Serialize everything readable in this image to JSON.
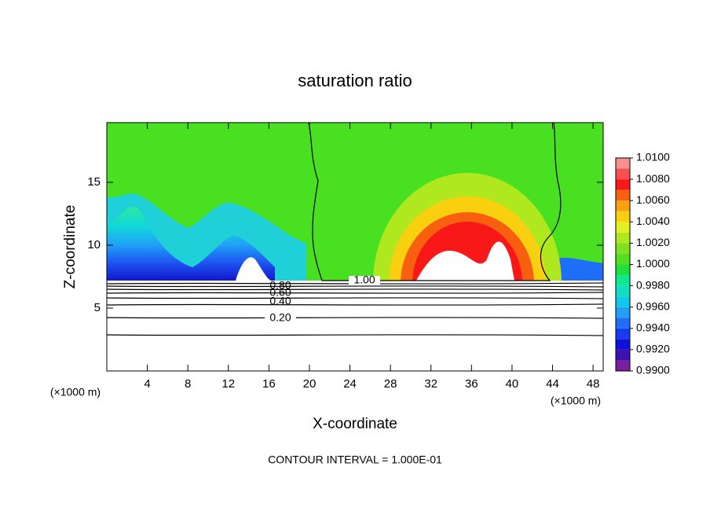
{
  "chart_data": {
    "type": "contour",
    "title": "saturation ratio",
    "x_label": "X-coordinate",
    "y_label": "Z-coordinate",
    "x_unit": "(×1000 m)",
    "y_unit": "(×1000 m)",
    "footer": "CONTOUR INTERVAL = 1.000E-01",
    "xlim": [
      0,
      49
    ],
    "xticks": [
      4,
      8,
      12,
      16,
      20,
      24,
      28,
      32,
      36,
      40,
      44,
      48
    ],
    "ylim": [
      0,
      19.75
    ],
    "yticks": [
      5,
      10,
      15
    ],
    "contour_labels": [
      "1.00",
      "0.80",
      "0.60",
      "0.40",
      "0.20"
    ],
    "colorbar": {
      "levels": [
        0.99,
        0.991,
        0.992,
        0.993,
        0.994,
        0.995,
        0.996,
        0.997,
        0.998,
        0.999,
        1.0,
        1.001,
        1.002,
        1.003,
        1.004,
        1.005,
        1.006,
        1.007,
        1.008,
        1.009,
        1.01
      ],
      "colors": [
        "#7a1fa0",
        "#3c12b0",
        "#1010d8",
        "#1a3af0",
        "#1e6ef8",
        "#20a0f8",
        "#10c8e8",
        "#10e0c0",
        "#10e890",
        "#20e040",
        "#50e020",
        "#80e020",
        "#b0e820",
        "#e0f020",
        "#f8d010",
        "#f8a010",
        "#f86010",
        "#f81818",
        "#f85050",
        "#f89090"
      ],
      "ticks": [
        {
          "value": 0.99,
          "label": "0.9900"
        },
        {
          "value": 0.992,
          "label": "0.9920"
        },
        {
          "value": 0.994,
          "label": "0.9940"
        },
        {
          "value": 0.996,
          "label": "0.9960"
        },
        {
          "value": 0.998,
          "label": "0.9980"
        },
        {
          "value": 1.0,
          "label": "1.0000"
        },
        {
          "value": 1.002,
          "label": "1.0020"
        },
        {
          "value": 1.004,
          "label": "1.0040"
        },
        {
          "value": 1.006,
          "label": "1.0060"
        },
        {
          "value": 1.008,
          "label": "1.0080"
        },
        {
          "value": 1.01,
          "label": "1.0100"
        }
      ]
    }
  }
}
